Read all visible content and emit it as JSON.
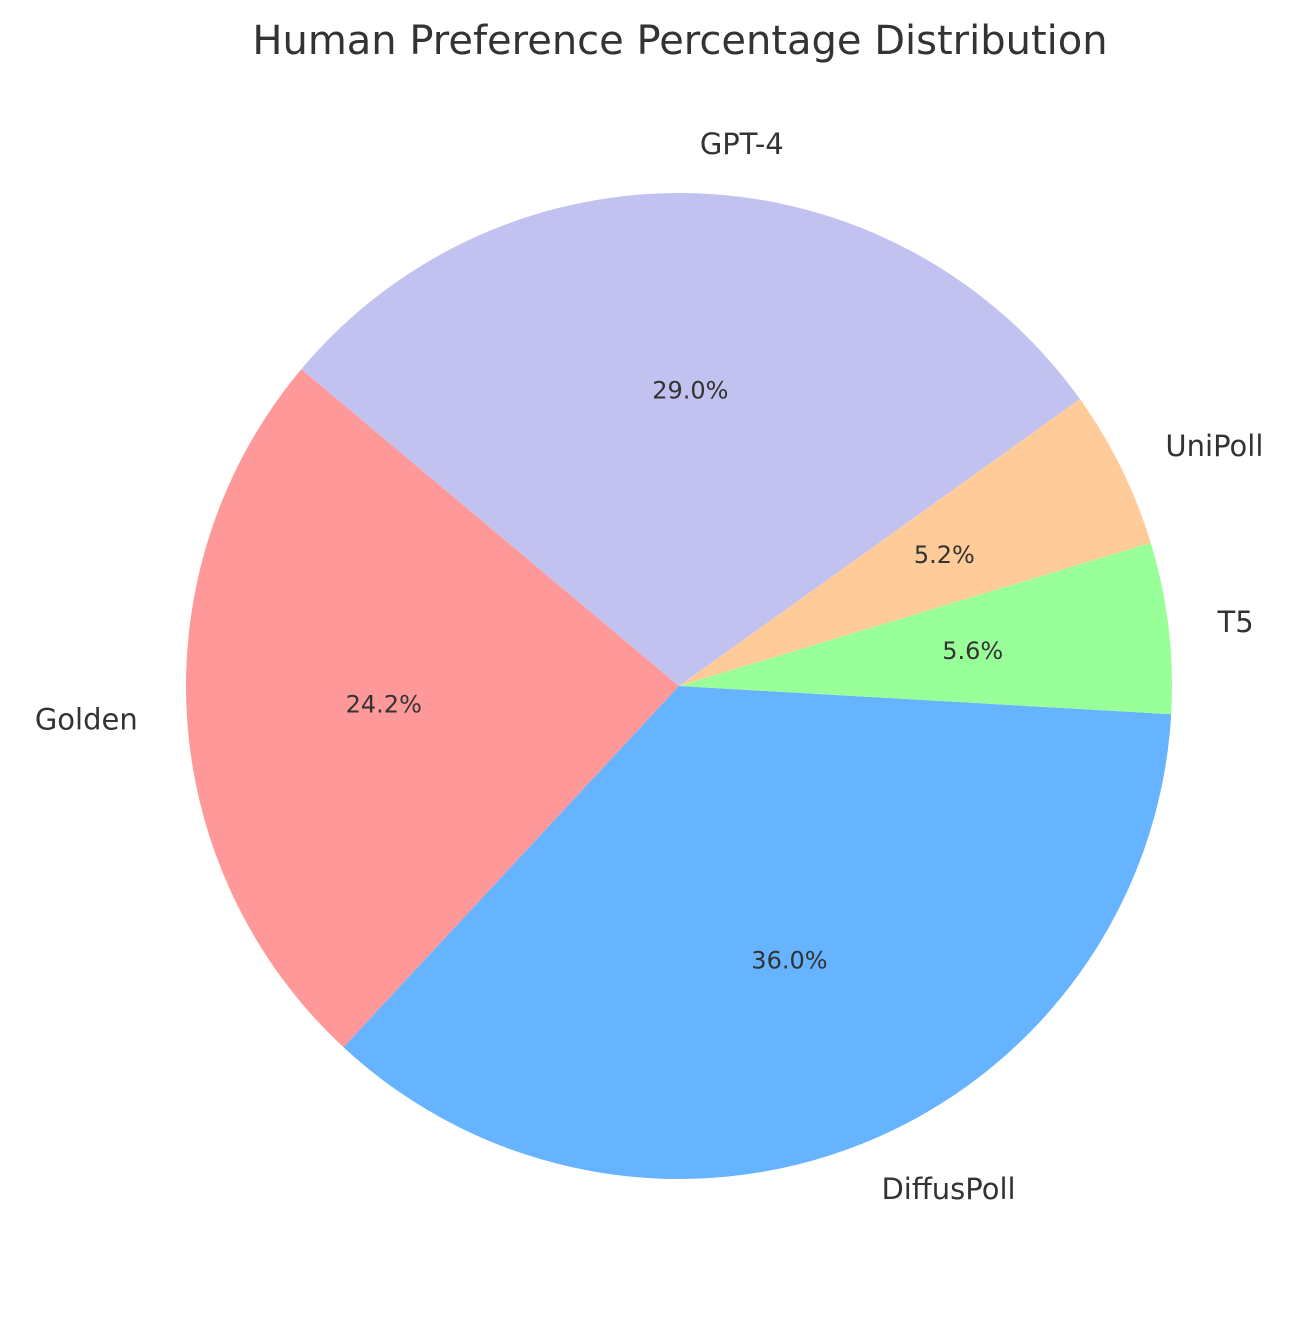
{
  "chart_data": {
    "type": "pie",
    "title": "Human Preference Percentage Distribution",
    "slices": [
      {
        "label": "Golden",
        "value": 24.2,
        "display": "24.2%",
        "color": "#ff9999"
      },
      {
        "label": "DiffusPoll",
        "value": 36.0,
        "display": "36.0%",
        "color": "#66b3ff"
      },
      {
        "label": "T5",
        "value": 5.6,
        "display": "5.6%",
        "color": "#99ff99"
      },
      {
        "label": "UniPoll",
        "value": 5.2,
        "display": "5.2%",
        "color": "#ffcc99"
      },
      {
        "label": "GPT-4",
        "value": 29.0,
        "display": "29.0%",
        "color": "#c2c2f0"
      }
    ],
    "start_angle_deg": 140,
    "direction": "counterclockwise"
  }
}
